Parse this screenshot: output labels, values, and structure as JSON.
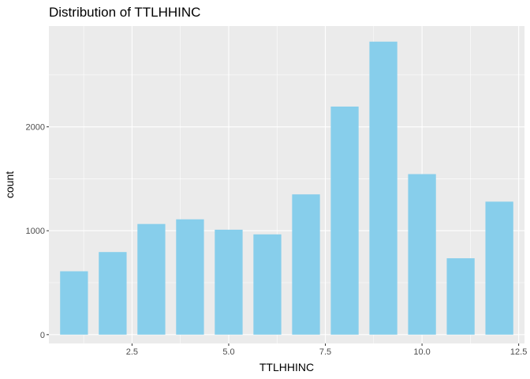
{
  "chart_data": {
    "type": "bar",
    "title": "Distribution of TTLHHINC",
    "xlabel": "TTLHHINC",
    "ylabel": "count",
    "x": [
      1,
      2,
      3,
      4,
      5,
      6,
      7,
      8,
      9,
      10,
      11,
      12
    ],
    "values": [
      610,
      795,
      1065,
      1110,
      1010,
      965,
      1350,
      2195,
      2820,
      1545,
      735,
      1280
    ],
    "xlim": [
      0.35,
      12.65
    ],
    "ylim": [
      -85,
      2970
    ],
    "xticks": [
      2.5,
      5.0,
      7.5,
      10.0,
      12.5
    ],
    "xtick_labels": [
      "2.5",
      "5.0",
      "7.5",
      "10.0",
      "12.5"
    ],
    "yticks": [
      0,
      1000,
      2000
    ],
    "ytick_labels": [
      "0",
      "1000",
      "2000"
    ],
    "bar_color": "#87CEEB",
    "panel_color": "#EBEBEB",
    "grid": true,
    "legend": "none"
  }
}
